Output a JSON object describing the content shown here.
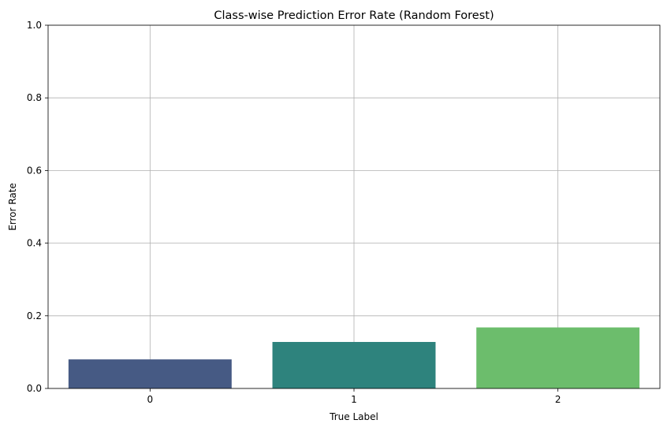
{
  "chart_data": {
    "type": "bar",
    "title": "Class-wise Prediction Error Rate (Random Forest)",
    "xlabel": "True Label",
    "ylabel": "Error Rate",
    "categories": [
      "0",
      "1",
      "2"
    ],
    "values": [
      0.08,
      0.128,
      0.168
    ],
    "colors": [
      "#465a84",
      "#2e837d",
      "#6cbd6c"
    ],
    "ylim": [
      0,
      1.0
    ],
    "yticks": [
      0.0,
      0.2,
      0.4,
      0.6,
      0.8,
      1.0
    ],
    "ytick_labels": [
      "0.0",
      "0.2",
      "0.4",
      "0.6",
      "0.8",
      "1.0"
    ],
    "grid": true
  }
}
